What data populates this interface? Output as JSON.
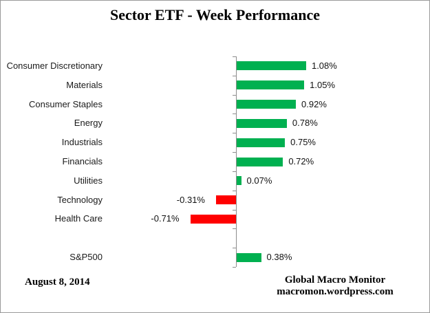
{
  "title": "Sector ETF - Week Performance",
  "footer": {
    "date": "August 8, 2014",
    "credit_line1": "Global Macro Monitor",
    "credit_line2": "macromon.wordpress.com"
  },
  "chart_data": {
    "type": "bar",
    "orientation": "horizontal",
    "title": "Sector ETF - Week Performance",
    "categories": [
      "Consumer Discretionary",
      "Materials",
      "Consumer Staples",
      "Energy",
      "Industrials",
      "Financials",
      "Utilities",
      "Technology",
      "Health Care",
      "",
      "S&P500"
    ],
    "values": [
      1.08,
      1.05,
      0.92,
      0.78,
      0.75,
      0.72,
      0.07,
      -0.31,
      -0.71,
      null,
      0.38
    ],
    "value_labels": [
      "1.08%",
      "1.05%",
      "0.92%",
      "0.78%",
      "0.75%",
      "0.72%",
      "0.07%",
      "-0.31%",
      "-0.71%",
      "",
      "0.38%"
    ],
    "unit": "percent",
    "positive_color": "#00B050",
    "negative_color": "#FF0000",
    "axis_color": "#8C8C8C",
    "grid": false,
    "legend": false,
    "value_axis_labels_shown": false
  }
}
